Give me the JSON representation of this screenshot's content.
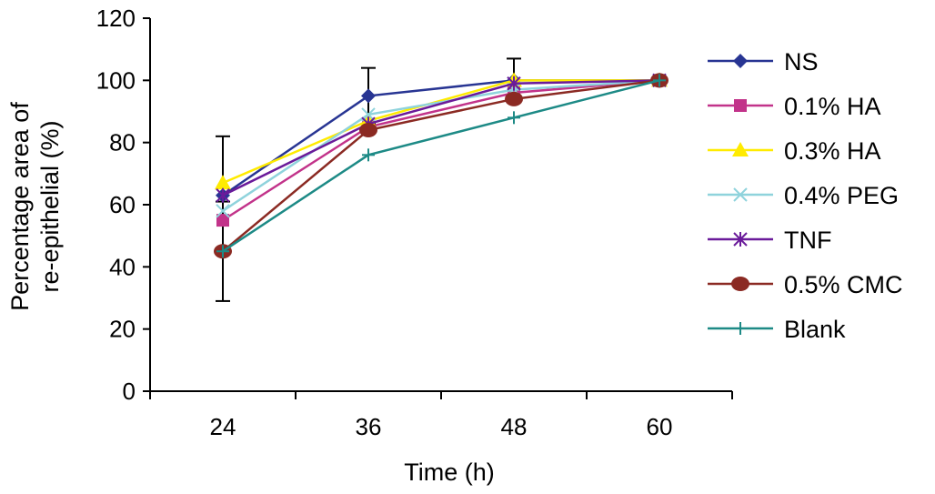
{
  "chart_data": {
    "type": "line",
    "title": "",
    "xlabel": "Time (h)",
    "ylabel_lines": [
      "Percentage area of",
      "re-epithelial (%)"
    ],
    "x": [
      24,
      36,
      48,
      60
    ],
    "x_tick_labels": [
      "24",
      "36",
      "48",
      "60"
    ],
    "xlim": [
      18,
      66
    ],
    "ylim": [
      0,
      120
    ],
    "y_ticks": [
      0,
      20,
      40,
      60,
      80,
      100,
      120
    ],
    "y_tick_labels": [
      "0",
      "20",
      "40",
      "60",
      "80",
      "100",
      "120"
    ],
    "grid": false,
    "legend_position": "right",
    "series": [
      {
        "name": "NS",
        "color": "#283593",
        "marker": "diamond",
        "values": [
          63,
          95,
          100,
          100
        ],
        "error": [
          19,
          9,
          7,
          0
        ]
      },
      {
        "name": "0.1% HA",
        "color": "#c2338a",
        "marker": "square",
        "values": [
          55,
          85,
          96,
          100
        ],
        "error": [
          0,
          0,
          0,
          0
        ]
      },
      {
        "name": "0.3% HA",
        "color": "#ffeb00",
        "marker": "triangle",
        "values": [
          67,
          87,
          100,
          100
        ],
        "error": [
          0,
          0,
          0,
          0
        ]
      },
      {
        "name": "0.4% PEG",
        "color": "#8fd3dc",
        "marker": "x",
        "values": [
          58,
          89,
          97,
          100
        ],
        "error": [
          0,
          0,
          0,
          0
        ]
      },
      {
        "name": "TNF",
        "color": "#6a1b9a",
        "marker": "asterisk",
        "values": [
          63,
          86,
          99,
          100
        ],
        "error": [
          0,
          0,
          0,
          0
        ]
      },
      {
        "name": "0.5% CMC",
        "color": "#8b2a23",
        "marker": "circle",
        "values": [
          45,
          84,
          94,
          100
        ],
        "error": [
          0,
          0,
          0,
          0
        ]
      },
      {
        "name": "Blank",
        "color": "#1d8a86",
        "marker": "plus",
        "values": [
          45,
          76,
          88,
          100
        ],
        "error": [
          16,
          0,
          0,
          0
        ]
      }
    ]
  }
}
